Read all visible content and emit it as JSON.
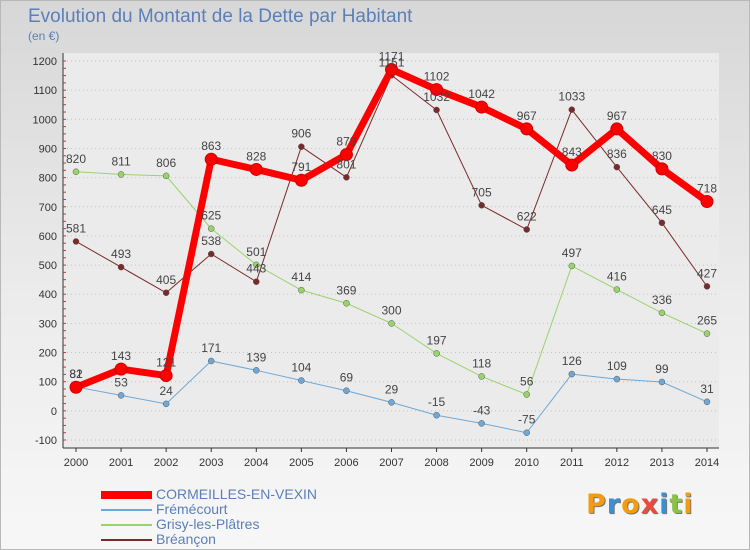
{
  "chart_data": {
    "type": "line",
    "title": "Evolution du Montant de la Dette par Habitant",
    "subtitle": "(en €)",
    "xlabel": "",
    "ylabel": "",
    "x": [
      2000,
      2001,
      2002,
      2003,
      2004,
      2005,
      2006,
      2007,
      2008,
      2009,
      2010,
      2011,
      2012,
      2013,
      2014
    ],
    "ylim": [
      -100,
      1200
    ],
    "yticks": [
      -100,
      0,
      100,
      200,
      300,
      400,
      500,
      600,
      700,
      800,
      900,
      1000,
      1100,
      1200
    ],
    "grid": "horizontal dotted",
    "legend_position": "bottom-left",
    "series": [
      {
        "name": "Frémécourt",
        "color": "#6fa8d6",
        "width": 1,
        "values": [
          82,
          53,
          24,
          171,
          139,
          104,
          69,
          29,
          -15,
          -43,
          -75,
          126,
          109,
          99,
          31
        ]
      },
      {
        "name": "Grisy-les-Plâtres",
        "color": "#99d46b",
        "width": 1,
        "values": [
          820,
          811,
          806,
          625,
          501,
          414,
          369,
          300,
          197,
          118,
          56,
          497,
          416,
          336,
          265
        ]
      },
      {
        "name": "Bréançon",
        "color": "#7a2a2a",
        "width": 1,
        "values": [
          581,
          493,
          405,
          538,
          443,
          906,
          801,
          1151,
          1032,
          705,
          622,
          1033,
          836,
          645,
          427
        ]
      },
      {
        "name": "CORMEILLES-EN-VEXIN",
        "color": "#ff0000",
        "width": 7,
        "values": [
          81,
          143,
          121,
          863,
          828,
          791,
          879,
          1171,
          1102,
          1042,
          967,
          843,
          967,
          830,
          718
        ]
      }
    ]
  },
  "legend": [
    {
      "label": "CORMEILLES-EN-VEXIN",
      "color": "#ff0000",
      "thick": true
    },
    {
      "label": "Frémécourt",
      "color": "#6fa8d6",
      "thick": false
    },
    {
      "label": "Grisy-les-Plâtres",
      "color": "#99d46b",
      "thick": false
    },
    {
      "label": "Bréançon",
      "color": "#7a2a2a",
      "thick": false
    }
  ],
  "logo": {
    "text": "Proxiti",
    "letters": [
      {
        "ch": "P",
        "color": "#f39c12"
      },
      {
        "ch": "r",
        "color": "#3b8fd6"
      },
      {
        "ch": "o",
        "color": "#f39c12"
      },
      {
        "ch": "x",
        "color": "#e74c3c"
      },
      {
        "ch": "i",
        "color": "#3b8fd6"
      },
      {
        "ch": "t",
        "color": "#8bc34a"
      },
      {
        "ch": "i",
        "color": "#f39c12"
      }
    ]
  }
}
